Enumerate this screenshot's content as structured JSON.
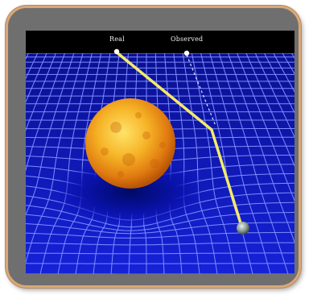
{
  "labels": {
    "real": "Real",
    "observed": "Observed"
  },
  "colors": {
    "frame_border": "#d9a878",
    "frame_fill": "#6f6f6f",
    "grid_background": "#0a0fb8",
    "grid_lines": "#7f8cff",
    "light_path": "#f5ea6a",
    "sun": "#f2a31a"
  },
  "objects": {
    "massive_body": "sun",
    "observer": "earth",
    "light_source": "star"
  }
}
